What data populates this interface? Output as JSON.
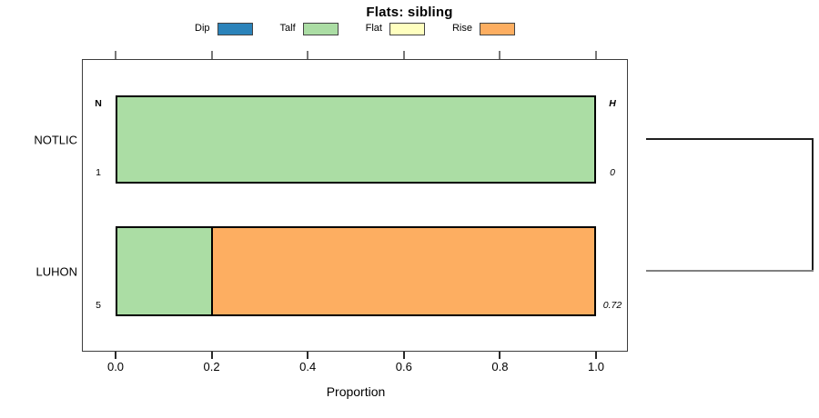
{
  "chart_data": {
    "type": "bar",
    "orientation": "horizontal",
    "stacked": true,
    "proportional": true,
    "title": "Flats: sibling",
    "xlabel": "Proportion",
    "categories": [
      "NOTLIC",
      "LUHON"
    ],
    "series": [
      {
        "name": "Dip",
        "color": "#2B83BA",
        "values": [
          0.0,
          0.0
        ]
      },
      {
        "name": "Talf",
        "color": "#ABDDA4",
        "values": [
          1.0,
          0.2
        ]
      },
      {
        "name": "Flat",
        "color": "#FFFFBF",
        "values": [
          0.0,
          0.0
        ]
      },
      {
        "name": "Rise",
        "color": "#FDAE61",
        "values": [
          0.0,
          0.8
        ]
      }
    ],
    "x_ticks": [
      0.0,
      0.2,
      0.4,
      0.6,
      0.8,
      1.0
    ],
    "xlim": [
      0,
      1
    ],
    "legend_position": "top",
    "grid": false,
    "row_annotations": {
      "left_header": "N",
      "right_header": "H",
      "left_values": [
        "1",
        "5"
      ],
      "right_values": [
        "0",
        "0.72"
      ]
    },
    "right_margin_dendrogram": {
      "joined_rows": [
        "NOTLIC",
        "LUHON"
      ]
    }
  }
}
